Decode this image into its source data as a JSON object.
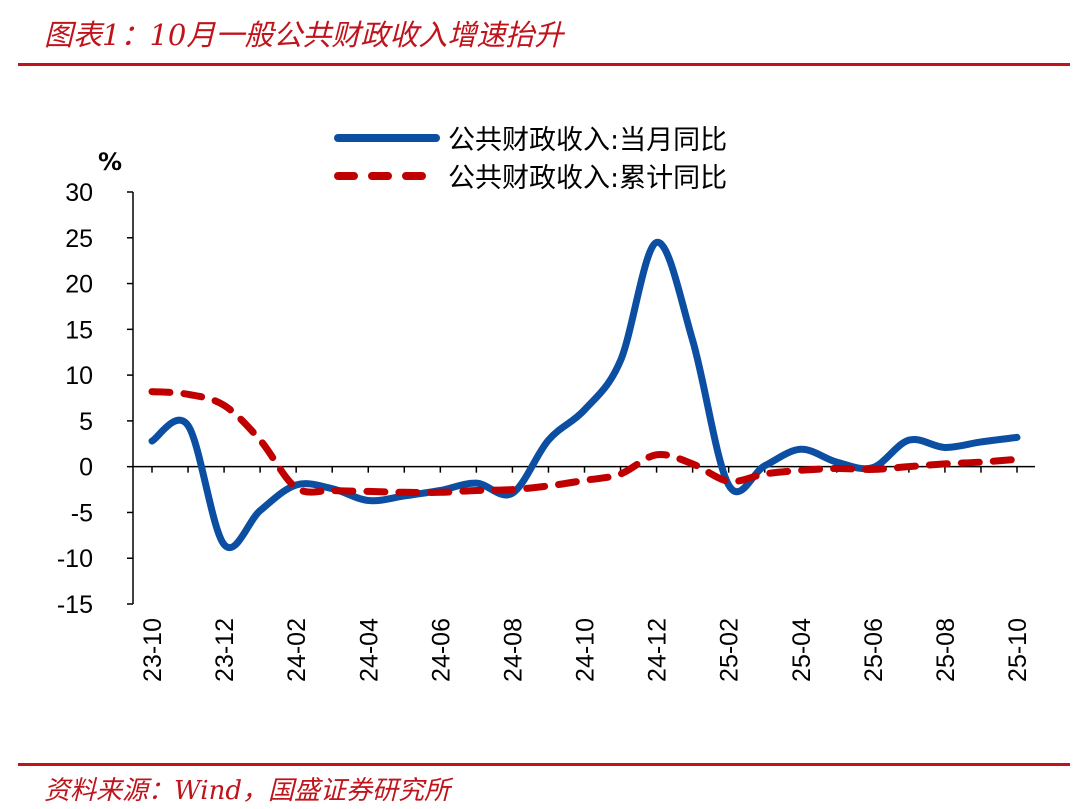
{
  "header": {
    "title": "图表1：10月一般公共财政收入增速抬升"
  },
  "footer": {
    "source": "资料来源：Wind，国盛证券研究所"
  },
  "chart_data": {
    "type": "line",
    "title": "图表1：10月一般公共财政收入增速抬升",
    "ylabel": "%",
    "ylim": [
      -15,
      30
    ],
    "yticks": [
      30,
      25,
      20,
      15,
      10,
      5,
      0,
      -5,
      -10,
      -15
    ],
    "x": [
      "23-10",
      "23-11",
      "23-12",
      "24-01",
      "24-02",
      "24-03",
      "24-04",
      "24-05",
      "24-06",
      "24-07",
      "24-08",
      "24-09",
      "24-10",
      "24-11",
      "24-12",
      "25-01",
      "25-02",
      "25-03",
      "25-04",
      "25-05",
      "25-06",
      "25-07",
      "25-08",
      "25-09",
      "25-10"
    ],
    "xtick_labels": [
      "23-10",
      "23-12",
      "24-02",
      "24-04",
      "24-06",
      "24-08",
      "24-10",
      "24-12",
      "25-02",
      "25-04",
      "25-06",
      "25-08",
      "25-10"
    ],
    "legend_position": "top-center",
    "series": [
      {
        "name": "公共财政收入:当月同比",
        "color": "#0b4ea2",
        "style": "solid",
        "values": [
          2.8,
          4.5,
          -8.5,
          -4.8,
          -2.0,
          -2.4,
          -3.7,
          -3.2,
          -2.6,
          -1.8,
          -2.9,
          2.9,
          6.2,
          11.6,
          24.5,
          13.8,
          -2.0,
          0.1,
          1.9,
          0.5,
          -0.1,
          2.9,
          2.1,
          2.7,
          3.2
        ]
      },
      {
        "name": "公共财政收入:累计同比",
        "color": "#c00000",
        "style": "dashed",
        "values": [
          8.2,
          7.9,
          6.7,
          2.9,
          -2.3,
          -2.6,
          -2.7,
          -2.8,
          -2.8,
          -2.6,
          -2.5,
          -2.1,
          -1.5,
          -0.8,
          1.3,
          0.3,
          -1.6,
          -0.8,
          -0.4,
          -0.2,
          -0.3,
          0.0,
          0.3,
          0.5,
          0.8
        ]
      }
    ]
  }
}
